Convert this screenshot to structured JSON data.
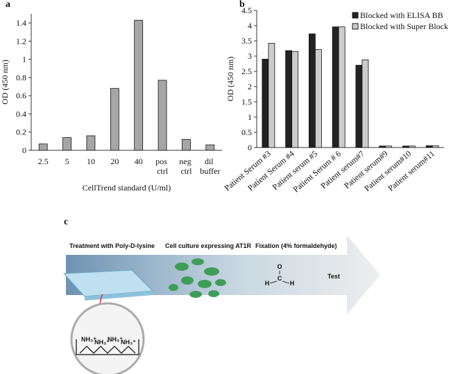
{
  "chart_data": [
    {
      "type": "bar",
      "panel": "a",
      "y_label": "OD (450 nm)",
      "x_label": "CellTrend standard (U/ml)",
      "categories": [
        "2.5",
        "5",
        "10",
        "20",
        "40",
        "pos ctrl",
        "neg ctrl",
        "dil buffer"
      ],
      "values": [
        0.07,
        0.14,
        0.16,
        0.68,
        1.43,
        0.77,
        0.12,
        0.06
      ],
      "color": "#a6a6a6",
      "ylim": [
        0,
        1.5
      ],
      "yticks": [
        0,
        0.2,
        0.4,
        0.6,
        0.8,
        1,
        1.2,
        1.4
      ],
      "grid": false
    },
    {
      "type": "bar",
      "panel": "b",
      "y_label": "OD (450 nm)",
      "categories": [
        "Patient Serum #3",
        "Patient Serum #4",
        "Patient serum #5",
        "Patient Serum # 6",
        "Patient serum#7",
        "Patient serum#9",
        "Patient  serum#10",
        "Patient  serum#11"
      ],
      "series": [
        {
          "name": "Blocked with ELISA BB",
          "color": "#222222",
          "values": [
            2.9,
            3.18,
            3.73,
            3.96,
            2.7,
            0.05,
            0.05,
            0.06
          ]
        },
        {
          "name": "Blocked with Super Block",
          "color": "#cccccc",
          "values": [
            3.42,
            3.15,
            3.22,
            3.96,
            2.88,
            0.05,
            0.05,
            0.06
          ]
        }
      ],
      "ylim": [
        0,
        4.5
      ],
      "yticks": [
        0,
        0.5,
        1,
        1.5,
        2,
        2.5,
        3,
        3.5,
        4,
        4.5
      ],
      "grid": false,
      "legend": "top-right"
    }
  ],
  "diagram": {
    "panel": "c",
    "steps": [
      "Treatment with Poly-D-lysine",
      "Cell culture expressing AT1R",
      "Fixation (4% formaldehyde)",
      "Test"
    ],
    "formaldehyde": [
      "O",
      "C",
      "H",
      "H"
    ],
    "amines": [
      "NH₃⁺",
      "NH₃⁺",
      "NH₃⁺",
      "NH₃⁺"
    ]
  }
}
